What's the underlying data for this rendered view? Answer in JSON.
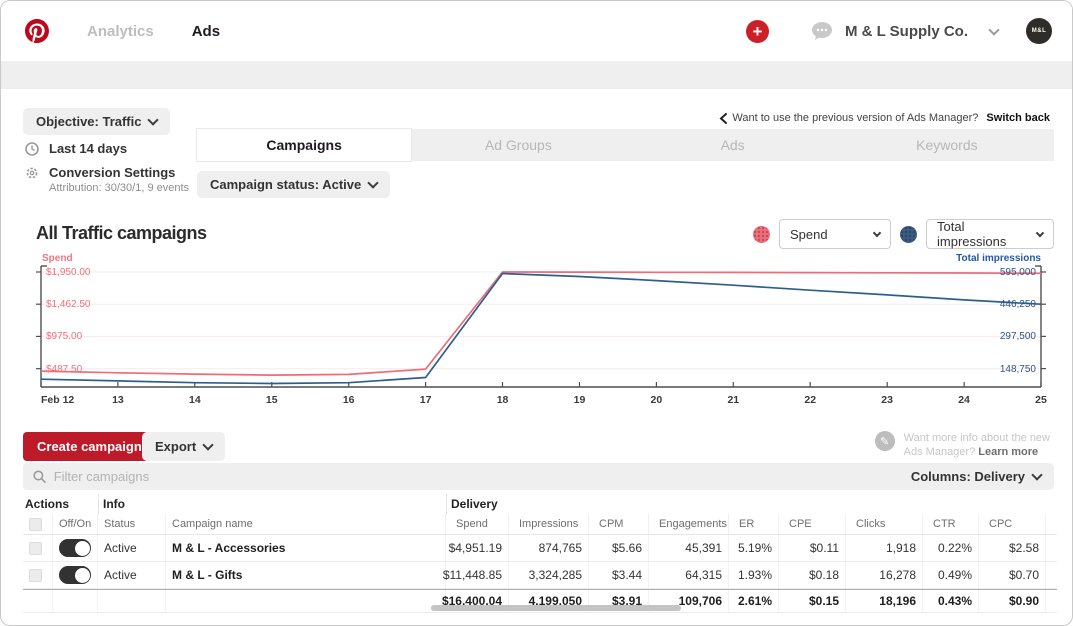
{
  "nav": {
    "analytics_label": "Analytics",
    "ads_label": "Ads",
    "account_name": "M & L Supply Co.",
    "avatar_text": "M&L"
  },
  "toolbar": {
    "objective_filter": "Objective: Traffic",
    "date_range": "Last 14 days",
    "conversion_title": "Conversion Settings",
    "conversion_sub": "Attribution: 30/30/1, 9 events",
    "switch_back_text": "Want to use the previous version of Ads Manager?",
    "switch_back_link": "Switch back",
    "campaign_status": "Campaign status: Active"
  },
  "tabs": {
    "campaigns": "Campaigns",
    "ad_groups": "Ad Groups",
    "ads": "Ads",
    "keywords": "Keywords"
  },
  "chart": {
    "title": "All Traffic campaigns",
    "metric1_select": "Spend",
    "metric2_select": "Total impressions"
  },
  "chart_data": {
    "type": "line",
    "title": "All Traffic campaigns",
    "x_labels": [
      "Feb 12",
      "13",
      "14",
      "15",
      "16",
      "17",
      "18",
      "19",
      "20",
      "21",
      "22",
      "23",
      "24",
      "25"
    ],
    "series": [
      {
        "name": "Spend",
        "axis": "left",
        "color": "#ee6b77",
        "values": [
          450,
          425,
          405,
          390,
          400,
          480,
          1950,
          1948,
          1945,
          1943,
          1940,
          1937,
          1934,
          1930
        ]
      },
      {
        "name": "Total impressions",
        "axis": "right",
        "color": "#2e5e8e",
        "values": [
          100000,
          92000,
          84000,
          80000,
          84000,
          108000,
          588000,
          574000,
          555000,
          534000,
          511000,
          489000,
          466000,
          446250
        ]
      }
    ],
    "left_axis": {
      "label": "Spend",
      "ticks": [
        "$487.50",
        "$975.00",
        "$1,462.50",
        "$1,950.00"
      ],
      "tick_values": [
        487.5,
        975,
        1462.5,
        1950
      ],
      "range": [
        210,
        2040
      ]
    },
    "right_axis": {
      "label": "Total impressions",
      "ticks": [
        "148,750",
        "297,500",
        "446,250",
        "595,000"
      ],
      "tick_values": [
        148750,
        297500,
        446250,
        595000
      ],
      "range": [
        64000,
        622500
      ]
    },
    "grid": true,
    "legend_position": "top-right"
  },
  "actions": {
    "create_button": "Create campaign",
    "export_button": "Export",
    "promo_line1": "Want more info about the new",
    "promo_line2": "Ads Manager?",
    "promo_link": "Learn more"
  },
  "filter_bar": {
    "placeholder": "Filter campaigns",
    "columns_button": "Columns: Delivery"
  },
  "table": {
    "groups": {
      "actions": "Actions",
      "info": "Info",
      "delivery": "Delivery"
    },
    "columns": {
      "off_on": "Off/On",
      "status": "Status",
      "name": "Campaign name",
      "spend": "Spend",
      "impressions": "Impressions",
      "cpm": "CPM",
      "engagements": "Engagements",
      "er": "ER",
      "cpe": "CPE",
      "clicks": "Clicks",
      "ctr": "CTR",
      "cpc": "CPC"
    },
    "rows": [
      {
        "toggle_on": true,
        "status": "Active",
        "name": "M & L - Accessories",
        "spend": "$4,951.19",
        "impressions": "874,765",
        "cpm": "$5.66",
        "engagements": "45,391",
        "er": "5.19%",
        "cpe": "$0.11",
        "clicks": "1,918",
        "ctr": "0.22%",
        "cpc": "$2.58"
      },
      {
        "toggle_on": true,
        "status": "Active",
        "name": "M & L - Gifts",
        "spend": "$11,448.85",
        "impressions": "3,324,285",
        "cpm": "$3.44",
        "engagements": "64,315",
        "er": "1.93%",
        "cpe": "$0.18",
        "clicks": "16,278",
        "ctr": "0.49%",
        "cpc": "$0.70"
      }
    ],
    "totals": {
      "spend": "$16,400.04",
      "impressions": "4,199,050",
      "cpm": "$3.91",
      "engagements": "109,706",
      "er": "2.61%",
      "cpe": "$0.15",
      "clicks": "18,196",
      "ctr": "0.43%",
      "cpc": "$0.90"
    }
  },
  "colors": {
    "brand_red": "#bd081c",
    "spend_line": "#ee6b77",
    "impressions_line": "#2e5e8e"
  }
}
